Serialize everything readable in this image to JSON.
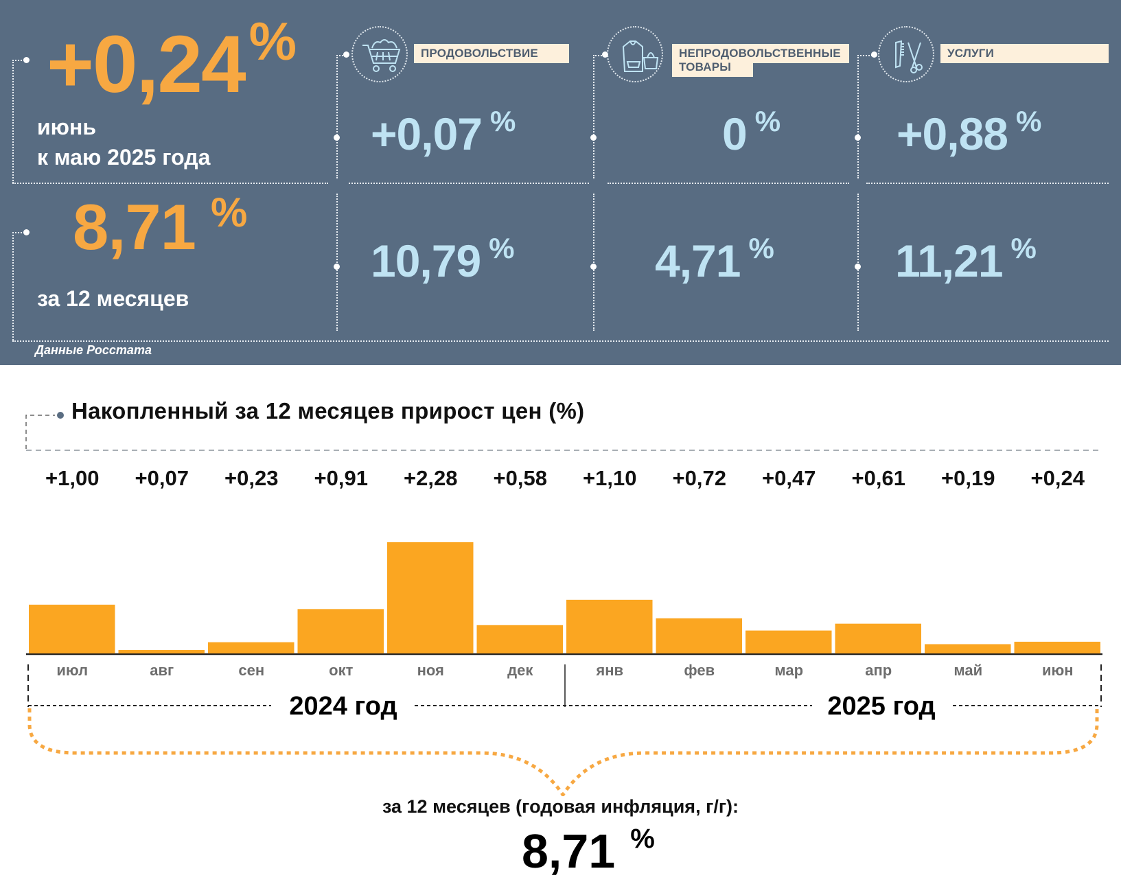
{
  "header": {
    "monthly": {
      "value": "+0,24",
      "unit": "%",
      "label_line1": "июнь",
      "label_line2": "к маю 2025 года"
    },
    "annual": {
      "value": "8,71",
      "unit": "%",
      "label": "за 12 месяцев"
    },
    "categories": [
      {
        "name": "ПРОДОВОЛЬСТВИЕ",
        "icon": "shopping-cart-icon",
        "monthly": "+0,07",
        "annual": "10,79",
        "unit": "%"
      },
      {
        "name_line1": "НЕПРОДОВОЛЬСТВЕННЫЕ",
        "name_line2": "ТОВАРЫ",
        "icon": "clothing-bag-icon",
        "monthly": "0",
        "annual": "4,71",
        "unit": "%"
      },
      {
        "name": "УСЛУГИ",
        "icon": "comb-scissors-icon",
        "monthly": "+0,88",
        "annual": "11,21",
        "unit": "%"
      }
    ],
    "source": "Данные Росстата"
  },
  "colors": {
    "panel_bg": "#586c82",
    "accent_orange": "#f7a842",
    "bar_orange": "#fba621",
    "value_blue": "#bfe3f3",
    "label_bg": "#fdf0dc"
  },
  "chart_data": {
    "type": "bar",
    "title": "Накопленный за 12 месяцев прирост цен (%)",
    "categories": [
      "июл",
      "авг",
      "сен",
      "окт",
      "ноя",
      "дек",
      "янв",
      "фев",
      "мар",
      "апр",
      "май",
      "июн"
    ],
    "values": [
      1.0,
      0.07,
      0.23,
      0.91,
      2.28,
      0.58,
      1.1,
      0.72,
      0.47,
      0.61,
      0.19,
      0.24
    ],
    "value_labels": [
      "+1,00",
      "+0,07",
      "+0,23",
      "+0,91",
      "+2,28",
      "+0,58",
      "+1,10",
      "+0,72",
      "+0,47",
      "+0,61",
      "+0,19",
      "+0,24"
    ],
    "groups": [
      {
        "label": "2024 год",
        "from": "июл",
        "to": "дек"
      },
      {
        "label": "2025 год",
        "from": "янв",
        "to": "июн"
      }
    ],
    "xlabel": "",
    "ylabel": "",
    "ylim": [
      0,
      2.28
    ],
    "grid": false,
    "legend": "none"
  },
  "summary": {
    "caption": "за 12 месяцев (годовая инфляция, г/г):",
    "value": "8,71",
    "unit": "%"
  }
}
